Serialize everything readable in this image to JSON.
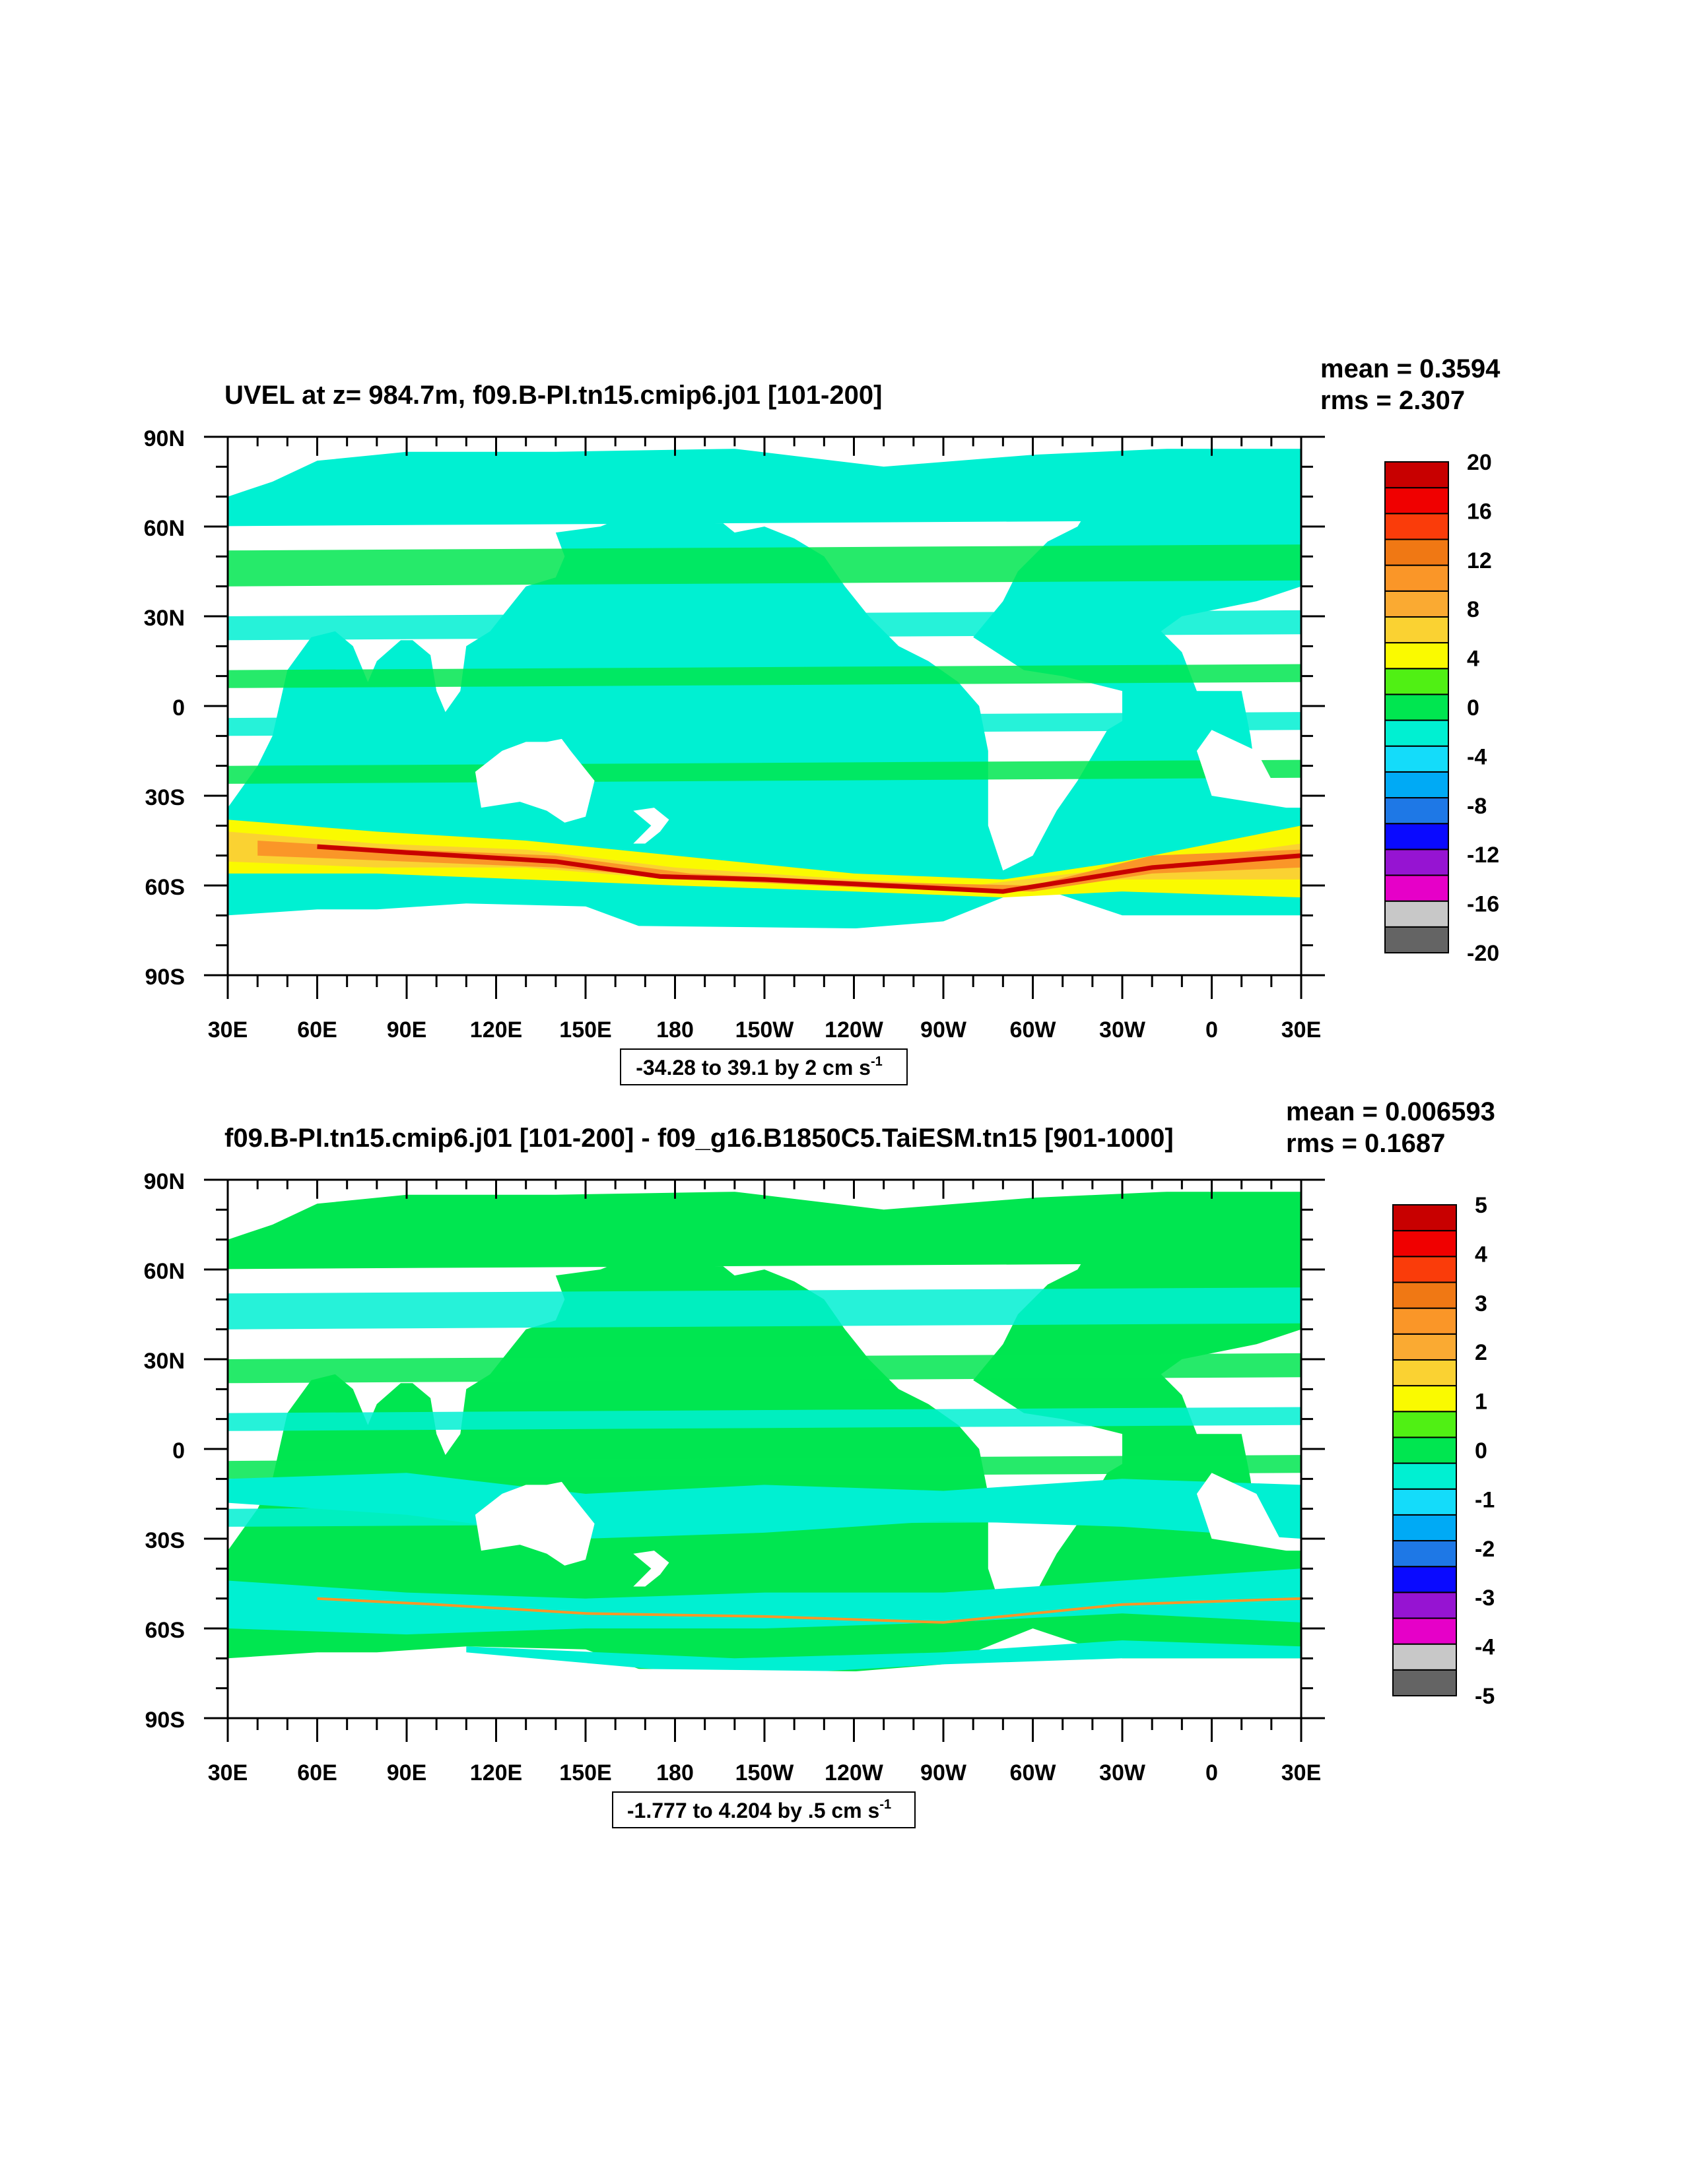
{
  "panels": [
    {
      "title": "UVEL at z= 984.7m, f09.B-PI.tn15.cmip6.j01 [101-200]",
      "mean_text": "mean = 0.3594",
      "rms_text": "rms = 2.307",
      "range_main": "-34.28 to 39.1 by 2 cm s",
      "range_sup": "-1",
      "lat_labels": [
        "90N",
        "60N",
        "30N",
        "0",
        "30S",
        "60S",
        "90S"
      ],
      "lon_labels": [
        "30E",
        "60E",
        "90E",
        "120E",
        "150E",
        "180",
        "150W",
        "120W",
        "90W",
        "60W",
        "30W",
        "0",
        "30E"
      ],
      "colorbar_labels": [
        "20",
        "16",
        "12",
        "8",
        "4",
        "0",
        "-4",
        "-8",
        "-12",
        "-16",
        "-20"
      ],
      "field_kind": "full"
    },
    {
      "title": "f09.B-PI.tn15.cmip6.j01 [101-200] - f09_g16.B1850C5.TaiESM.tn15 [901-1000]",
      "mean_text": "mean = 0.006593",
      "rms_text": "rms = 0.1687",
      "range_main": "-1.777 to 4.204 by .5 cm s",
      "range_sup": "-1",
      "lat_labels": [
        "90N",
        "60N",
        "30N",
        "0",
        "30S",
        "60S",
        "90S"
      ],
      "lon_labels": [
        "30E",
        "60E",
        "90E",
        "120E",
        "150E",
        "180",
        "150W",
        "120W",
        "90W",
        "60W",
        "30W",
        "0",
        "30E"
      ],
      "colorbar_labels": [
        "5",
        "4",
        "3",
        "2",
        "1",
        "0",
        "-1",
        "-2",
        "-3",
        "-4",
        "-5"
      ],
      "field_kind": "diff"
    }
  ],
  "colormap": [
    "#646464",
    "#c8c8c8",
    "#e600c8",
    "#9614d2",
    "#0a0aff",
    "#1e78e6",
    "#00aaf5",
    "#14dcfa",
    "#00f0d2",
    "#00e650",
    "#50f014",
    "#fafa00",
    "#fad232",
    "#faaa32",
    "#fa9628",
    "#f07814",
    "#fa3c0a",
    "#f00000",
    "#c80000"
  ]
}
